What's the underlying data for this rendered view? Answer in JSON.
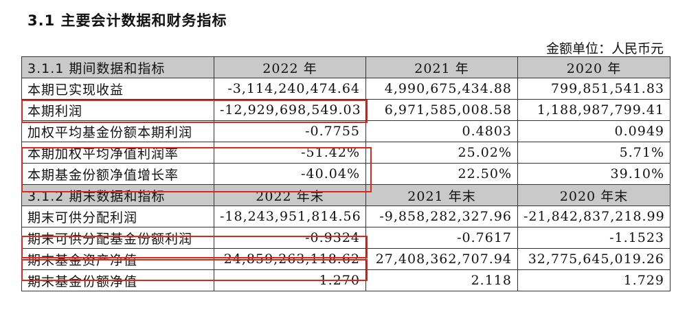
{
  "title": "3.1 主要会计数据和财务指标",
  "unit": "金额单位：人民币元",
  "sections": [
    {
      "header": [
        "3.1.1 期间数据和指标",
        "2022 年",
        "2021 年",
        "2020 年"
      ],
      "rows": [
        [
          "本期已实现收益",
          "-3,114,240,474.64",
          "4,990,675,434.88",
          "799,851,541.83"
        ],
        [
          "本期利润",
          "-12,929,698,549.03",
          "6,971,585,008.58",
          "1,188,987,799.41"
        ],
        [
          "加权平均基金份额本期利润",
          "-0.7755",
          "0.4803",
          "0.0949"
        ],
        [
          "本期加权平均净值利润率",
          "-51.42%",
          "25.02%",
          "5.71%"
        ],
        [
          "本期基金份额净值增长率",
          "-40.04%",
          "22.50%",
          "39.10%"
        ]
      ]
    },
    {
      "header": [
        "3.1.2 期末数据和指标",
        "2022 年末",
        "2021 年末",
        "2020 年末"
      ],
      "rows": [
        [
          "期末可供分配利润",
          "-18,243,951,814.56",
          "-9,858,282,327.96",
          "-21,842,837,218.99"
        ],
        [
          "期末可供分配基金份额利润",
          "-0.9324",
          "-0.7617",
          "-1.1523"
        ],
        [
          "期末基金资产净值",
          "24,859,263,118.62",
          "27,408,362,707.94",
          "32,775,645,019.26"
        ],
        [
          "期末基金份额净值",
          "1.270",
          "2.118",
          "1.729"
        ]
      ]
    }
  ],
  "highlight_color": "#e0251b"
}
